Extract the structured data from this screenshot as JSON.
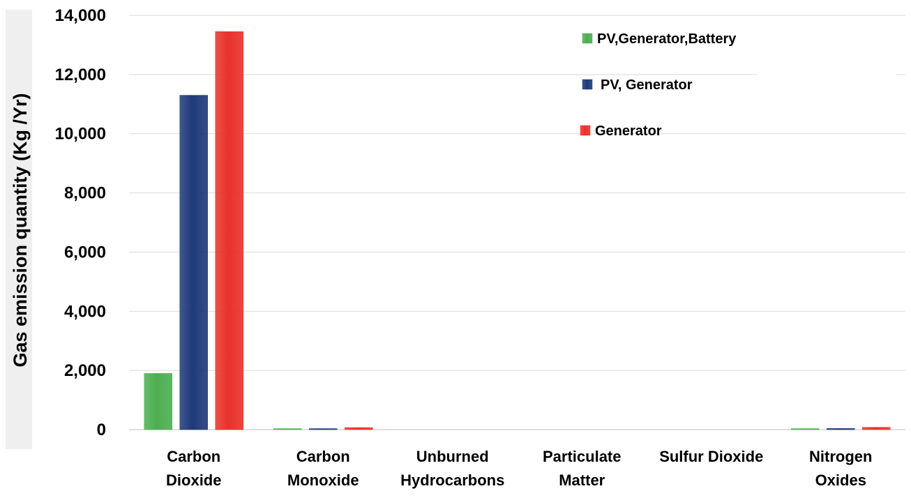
{
  "chart_data": {
    "type": "bar",
    "title": "",
    "xlabel": "",
    "ylabel": "Gas emission quantity (Kg /Yr)",
    "ylim": [
      0,
      14000
    ],
    "yticks": [
      "0",
      "2,000",
      "4,000",
      "6,000",
      "8,000",
      "10,000",
      "12,000",
      "14,000"
    ],
    "ytick_values": [
      0,
      2000,
      4000,
      6000,
      8000,
      10000,
      12000,
      14000
    ],
    "grid": true,
    "legend_position": "top-right",
    "categories": [
      [
        "Carbon",
        "Dioxide"
      ],
      [
        "Carbon",
        "Monoxide"
      ],
      [
        "Unburned",
        "Hydrocarbons"
      ],
      [
        "Particulate",
        "Matter"
      ],
      [
        "Sulfur Dioxide"
      ],
      [
        "Nitrogen",
        "Oxides"
      ]
    ],
    "series": [
      {
        "name": "PV,Generator,Battery",
        "color": "#4CAF50",
        "values": [
          1900,
          2,
          0,
          0,
          0,
          5
        ]
      },
      {
        "name": "PV, Generator",
        "color": "#1F3A7A",
        "values": [
          11300,
          30,
          0,
          0,
          0,
          40
        ]
      },
      {
        "name": "Generator",
        "color": "#E8322A",
        "values": [
          13450,
          70,
          0,
          0,
          0,
          80
        ]
      }
    ]
  }
}
